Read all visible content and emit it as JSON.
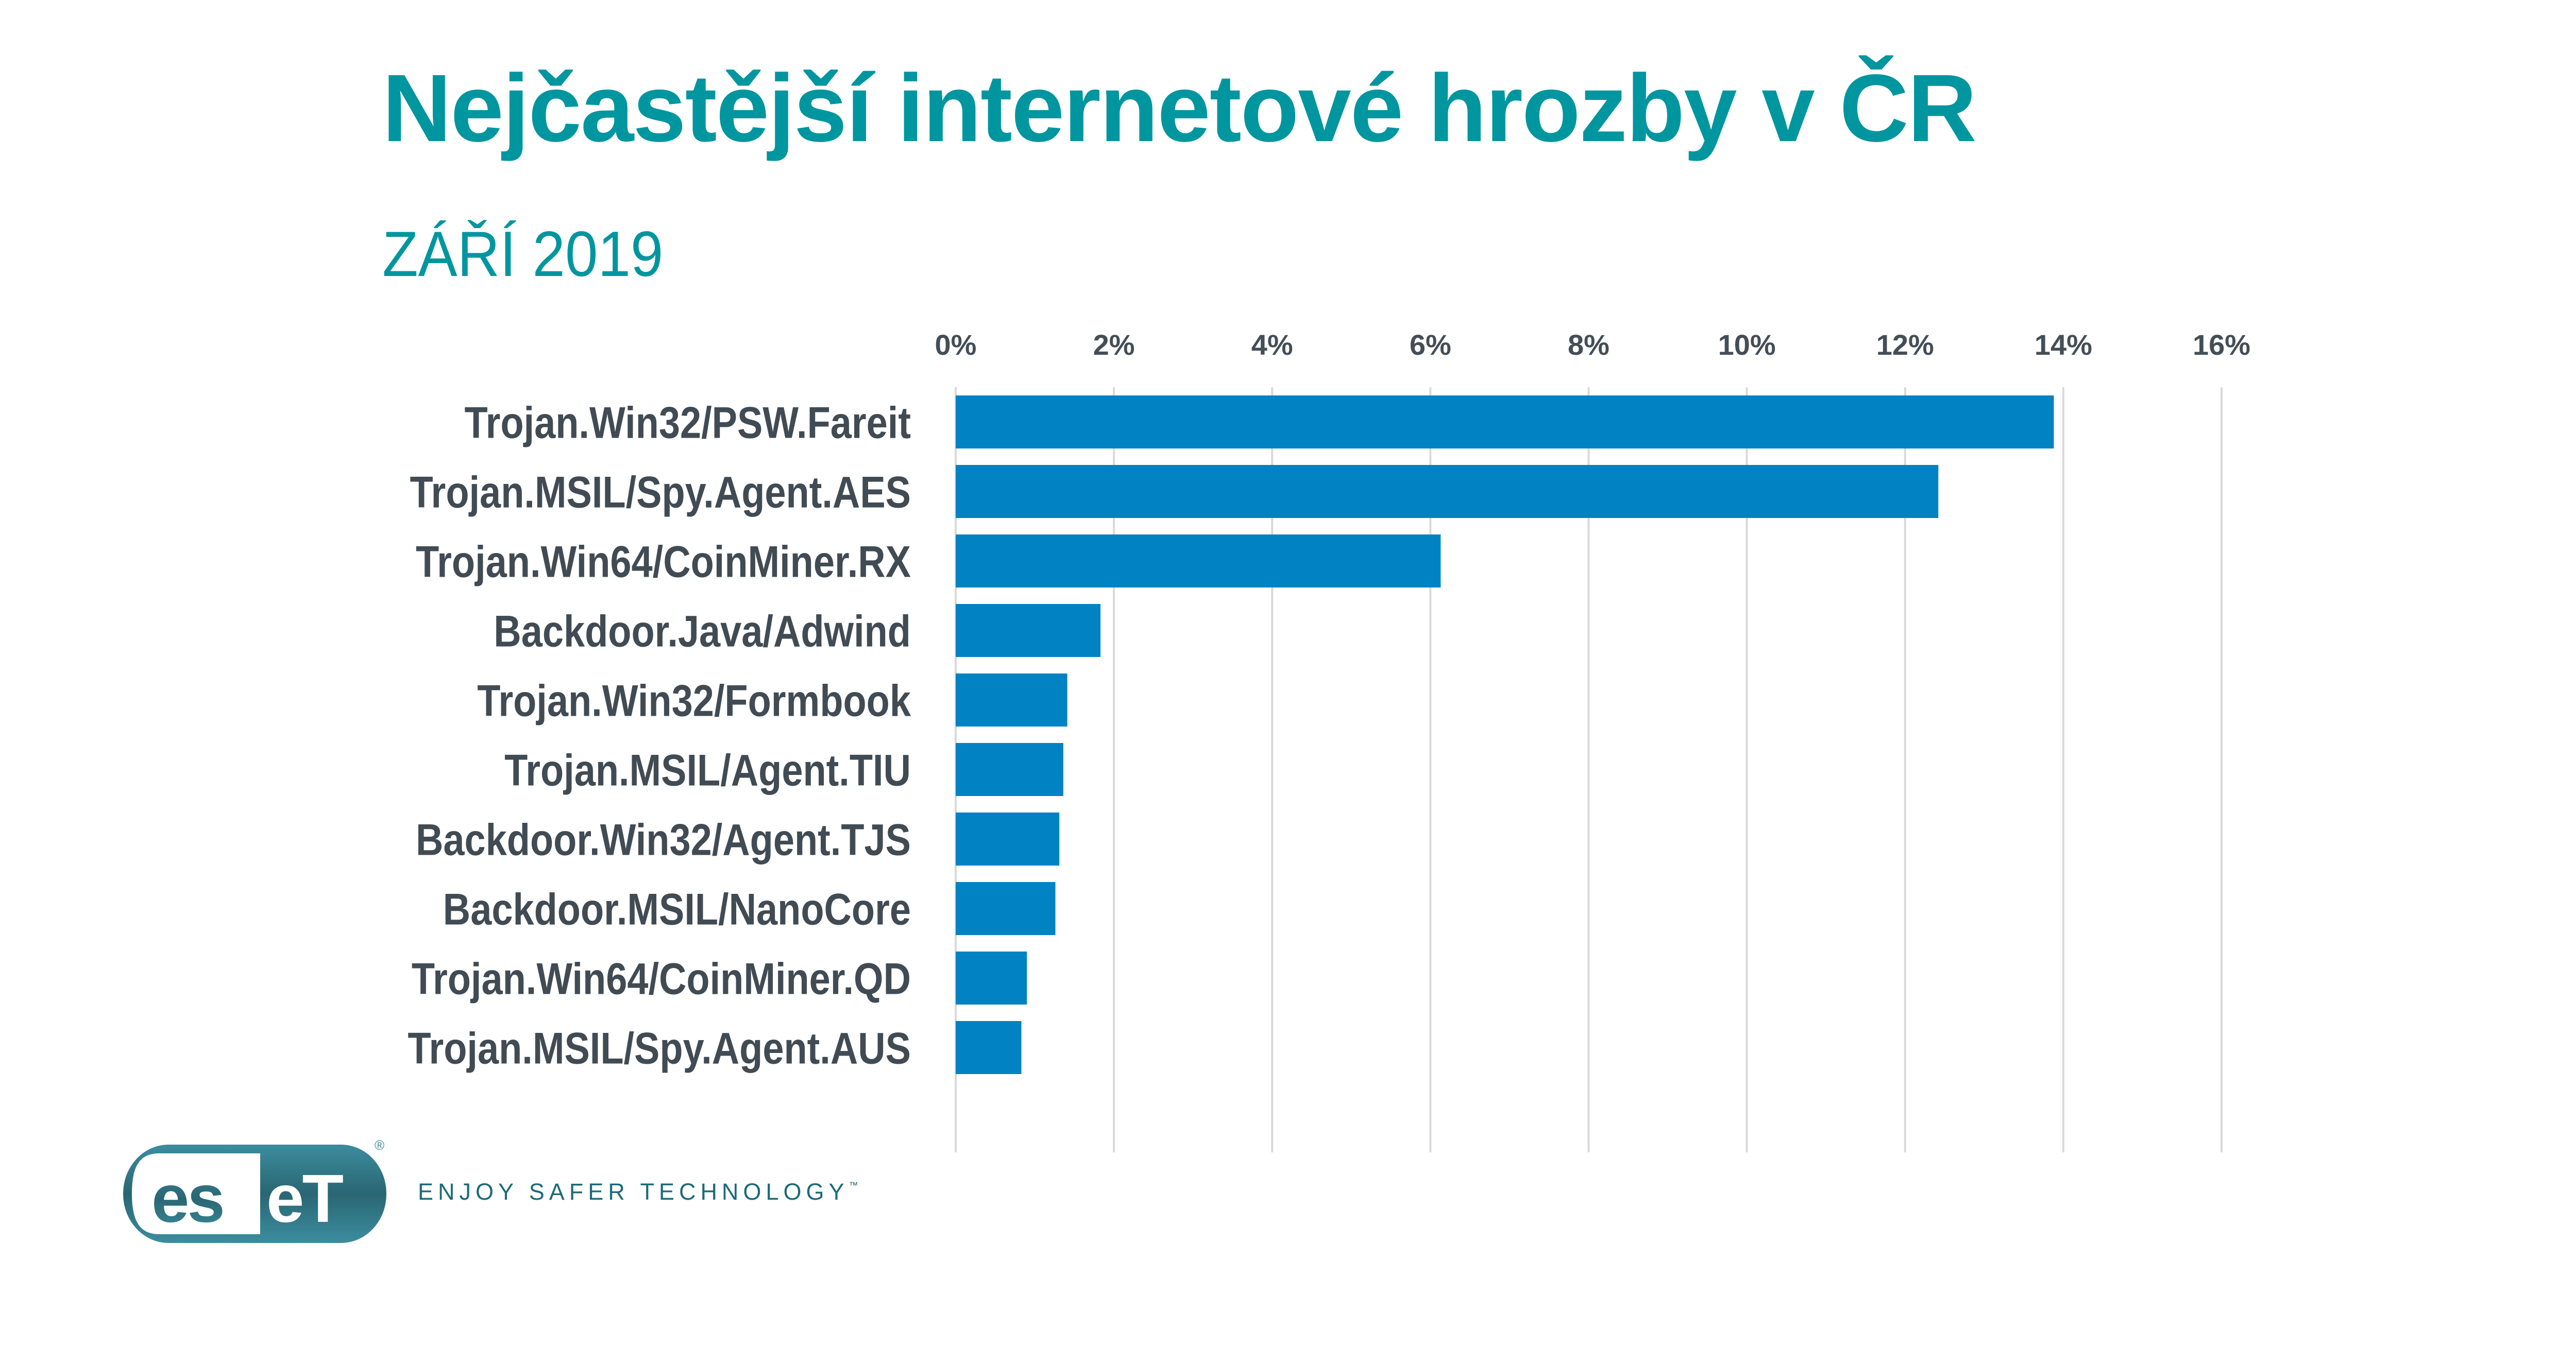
{
  "header": {
    "title": "Nejčastější internetové hrozby v ČR",
    "subtitle": "ZÁŘÍ 2019"
  },
  "colors": {
    "title": "#00969F",
    "bar": "#0082C3",
    "text": "#414B54",
    "gridline": "#D9D9D9",
    "brand": "#2B6B7A"
  },
  "chart_data": {
    "type": "bar",
    "orientation": "horizontal",
    "title": "Nejčastější internetové hrozby v ČR",
    "subtitle": "ZÁŘÍ 2019",
    "categories": [
      "Trojan.Win32/PSW.Fareit",
      "Trojan.MSIL/Spy.Agent.AES",
      "Trojan.Win64/CoinMiner.RX",
      "Backdoor.Java/Adwind",
      "Trojan.Win32/Formbook",
      "Trojan.MSIL/Agent.TIU",
      "Backdoor.Win32/Agent.TJS",
      "Backdoor.MSIL/NanoCore",
      "Trojan.Win64/CoinMiner.QD",
      "Trojan.MSIL/Spy.Agent.AUS"
    ],
    "values": [
      13.88,
      12.42,
      6.13,
      1.83,
      1.41,
      1.36,
      1.31,
      1.26,
      0.9,
      0.83
    ],
    "unit": "%",
    "xlabel": "",
    "ylabel": "",
    "xlim": [
      0,
      16
    ],
    "xticks": [
      0,
      2,
      4,
      6,
      8,
      10,
      12,
      14,
      16
    ],
    "xtick_labels": [
      "0%",
      "2%",
      "4%",
      "6%",
      "8%",
      "10%",
      "12%",
      "14%",
      "16%"
    ],
    "xaxis_position": "top",
    "grid": true,
    "legend": "none"
  },
  "footer": {
    "logo_text_left": "es",
    "logo_text_right": "eT",
    "logo_registered": "®",
    "tagline": "ENJOY SAFER TECHNOLOGY",
    "tagline_tm": "™"
  }
}
